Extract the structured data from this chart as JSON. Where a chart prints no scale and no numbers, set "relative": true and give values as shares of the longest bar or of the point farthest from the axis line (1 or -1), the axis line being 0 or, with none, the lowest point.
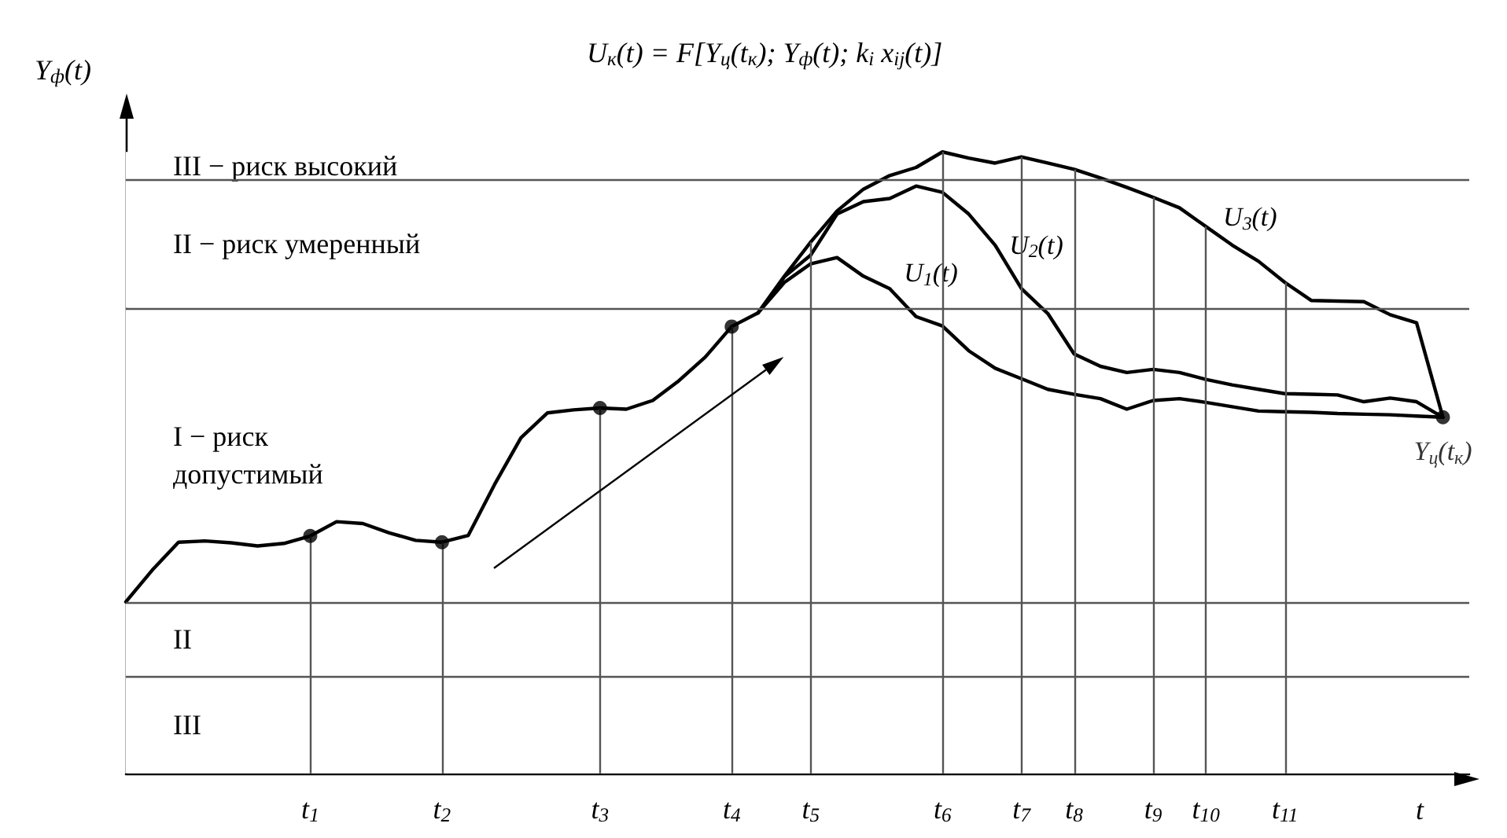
{
  "chart_data": {
    "type": "line",
    "relative": true,
    "title": "U$_{к}$(t) = F[Y$_{ц}$(t$_{к}$); Y$_{ф}$(t); k$_{i}$ x$_{ij}$(t)]",
    "ylabel": "Y$_{ф}$(t)",
    "xlabel": "t",
    "marker": "none",
    "line_style": "solid",
    "grid": "x",
    "categories": [
      null,
      null,
      null,
      null,
      null,
      null,
      null,
      "t$_{1}$",
      null,
      null,
      null,
      null,
      "t$_{2}$",
      null,
      null,
      null,
      null,
      null,
      "t$_{3}$",
      null,
      null,
      null,
      null,
      "t$_{4}$",
      null,
      null,
      "t$_{5}$",
      null,
      null,
      null,
      null,
      "t$_{6}$",
      null,
      null,
      "t$_{7}$",
      null,
      "t$_{8}$",
      null,
      null,
      "t$_{9}$",
      null,
      "t$_{10}$",
      null,
      null,
      "t$_{11}$",
      null,
      null,
      null,
      null,
      null,
      null,
      null
    ],
    "series": [
      {
        "name": "U$_{1}$(t)",
        "color": "#000000",
        "values": [
          null,
          null,
          null,
          null,
          null,
          null,
          null,
          null,
          null,
          null,
          null,
          null,
          null,
          null,
          null,
          null,
          null,
          null,
          null,
          null,
          null,
          null,
          null,
          null,
          0.741,
          0.79,
          0.82,
          0.83,
          0.8,
          0.78,
          0.735,
          0.72,
          0.68,
          0.652,
          0.635,
          0.618,
          0.61,
          0.603,
          0.586,
          0.6,
          0.603,
          0.597,
          0.59,
          0.583,
          0.582,
          0.581,
          0.579,
          0.578,
          0.577,
          0.575,
          0.573,
          null
        ]
      },
      {
        "name": "U$_{2}$(t)",
        "color": "#000000",
        "values": [
          null,
          null,
          null,
          null,
          null,
          null,
          null,
          null,
          null,
          null,
          null,
          null,
          null,
          null,
          null,
          null,
          null,
          null,
          null,
          null,
          null,
          null,
          null,
          null,
          0.741,
          0.799,
          0.834,
          0.9,
          0.92,
          0.925,
          0.945,
          0.935,
          0.9,
          0.85,
          0.78,
          0.74,
          0.675,
          0.655,
          0.645,
          0.65,
          0.645,
          0.634,
          0.625,
          0.618,
          0.611,
          0.61,
          0.609,
          0.598,
          0.604,
          0.598,
          0.573,
          null
        ]
      },
      {
        "name": "U$_{3}$(t)",
        "color": "#000000",
        "values": [
          0.276,
          0.327,
          0.372,
          0.374,
          0.371,
          0.366,
          0.37,
          0.382,
          0.405,
          0.402,
          0.387,
          0.375,
          0.372,
          0.383,
          0.465,
          0.54,
          0.58,
          0.585,
          0.588,
          0.586,
          0.6,
          0.632,
          0.67,
          0.719,
          0.741,
          0.8,
          0.855,
          0.905,
          0.94,
          0.962,
          0.975,
          1.0,
          0.99,
          0.982,
          0.992,
          0.982,
          0.972,
          0.958,
          0.943,
          0.927,
          0.91,
          0.88,
          0.85,
          0.824,
          0.79,
          0.761,
          0.76,
          0.759,
          0.738,
          0.725,
          0.573,
          null
        ]
      },
      {
        "type": "scatter",
        "marker": "circle",
        "color": "#000000",
        "values": [
          null,
          null,
          null,
          null,
          null,
          null,
          null,
          0.382,
          null,
          null,
          null,
          null,
          0.372,
          null,
          null,
          null,
          null,
          null,
          0.588,
          null,
          null,
          null,
          null,
          0.719,
          null,
          null,
          null,
          null,
          null,
          null,
          null,
          null,
          null,
          null,
          null,
          null,
          null,
          null,
          null,
          null,
          null,
          null,
          null,
          null,
          null,
          null,
          null,
          null,
          null,
          null,
          0.573,
          null
        ]
      }
    ],
    "bands": [
      {
        "axis": "y",
        "from": 0,
        "to": 0.156,
        "label": "III",
        "color": "#ffffff"
      },
      {
        "axis": "y",
        "from": 0.156,
        "to": 0.276,
        "label": "II",
        "color": "#ffffff"
      },
      {
        "axis": "y",
        "from": 0.276,
        "to": 0.749,
        "label": "I − риск\nдопустимый",
        "color": "#ffffff"
      },
      {
        "axis": "y",
        "from": 0.749,
        "to": 0.955,
        "label": "II − риск умеренный",
        "color": "#ffffff"
      },
      {
        "axis": "y",
        "from": 0.955,
        "to": 1.0,
        "label": "III − риск высокий",
        "color": "#ffffff"
      }
    ],
    "annotations": [
      {
        "text": "Y$_{ц}$(t$_{к}$)",
        "y": 0.573
      }
    ]
  }
}
